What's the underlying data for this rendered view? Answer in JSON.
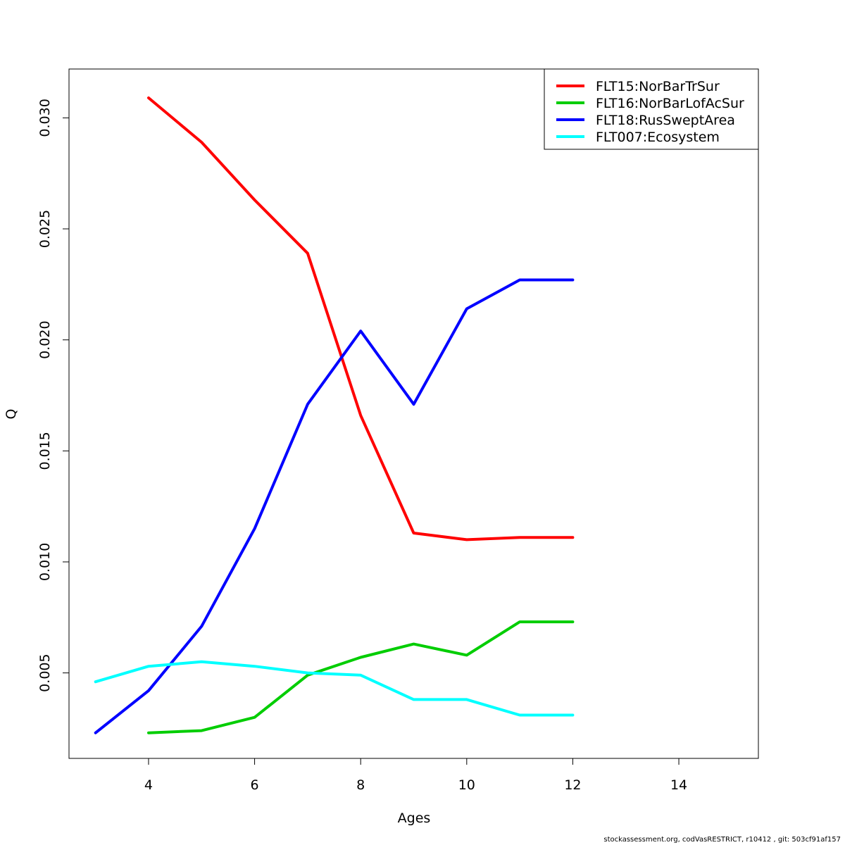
{
  "chart_data": {
    "type": "line",
    "xlabel": "Ages",
    "ylabel": "Q",
    "xlim": [
      2.5,
      15.5
    ],
    "ylim": [
      0.00115,
      0.0322
    ],
    "x_ticks": [
      4,
      6,
      8,
      10,
      12,
      14
    ],
    "x_tick_labels": [
      "4",
      "6",
      "8",
      "10",
      "12",
      "14"
    ],
    "y_ticks": [
      0.005,
      0.01,
      0.015,
      0.02,
      0.025,
      0.03
    ],
    "y_tick_labels": [
      "0.005",
      "0.010",
      "0.015",
      "0.020",
      "0.025",
      "0.030"
    ],
    "legend_position": "top-right",
    "grid": false,
    "series": [
      {
        "name": "FLT15:NorBarTrSur",
        "color": "#ff0000",
        "x": [
          4,
          5,
          6,
          7,
          8,
          9,
          10,
          11,
          12
        ],
        "y": [
          0.0309,
          0.0289,
          0.0263,
          0.0239,
          0.0166,
          0.0113,
          0.011,
          0.0111,
          0.0111
        ]
      },
      {
        "name": "FLT16:NorBarLofAcSur",
        "color": "#00cd00",
        "x": [
          4,
          5,
          6,
          7,
          8,
          9,
          10,
          11,
          12
        ],
        "y": [
          0.0023,
          0.0024,
          0.003,
          0.0049,
          0.0057,
          0.0063,
          0.0058,
          0.0073,
          0.0073
        ]
      },
      {
        "name": "FLT18:RusSweptArea",
        "color": "#0000ff",
        "x": [
          3,
          4,
          5,
          6,
          7,
          8,
          9,
          10,
          11,
          12
        ],
        "y": [
          0.0023,
          0.0042,
          0.0071,
          0.0115,
          0.0171,
          0.0204,
          0.0171,
          0.0214,
          0.0227,
          0.0227
        ]
      },
      {
        "name": "FLT007:Ecosystem",
        "color": "#00ffff",
        "x": [
          3,
          4,
          5,
          6,
          7,
          8,
          9,
          10,
          11,
          12
        ],
        "y": [
          0.0046,
          0.0053,
          0.0055,
          0.0053,
          0.005,
          0.0049,
          0.0038,
          0.0038,
          0.0031,
          0.0031
        ]
      }
    ]
  },
  "footer": "stockassessment.org, codVasRESTRICT, r10412 , git: 503cf91af157"
}
